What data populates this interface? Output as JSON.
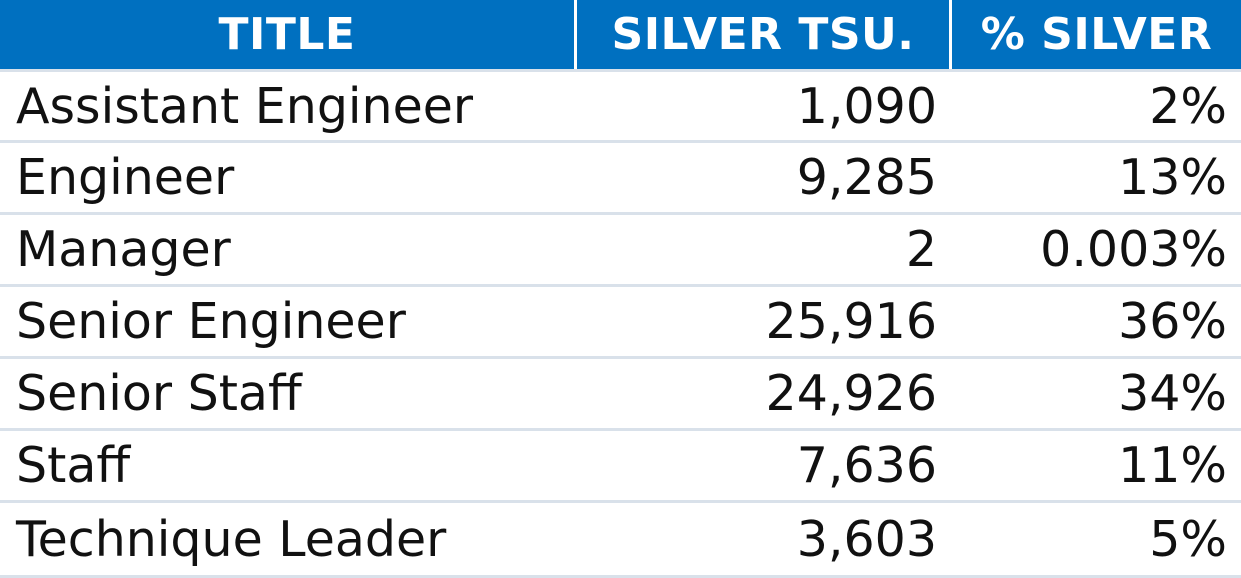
{
  "table": {
    "headers": {
      "title": "TITLE",
      "silver_tsu": "SILVER TSU.",
      "pct_silver": "% SILVER"
    },
    "rows": [
      {
        "title": "Assistant Engineer",
        "silver_tsu": "1,090",
        "pct_silver": "2%"
      },
      {
        "title": "Engineer",
        "silver_tsu": "9,285",
        "pct_silver": "13%"
      },
      {
        "title": "Manager",
        "silver_tsu": "2",
        "pct_silver": "0.003%"
      },
      {
        "title": "Senior Engineer",
        "silver_tsu": "25,916",
        "pct_silver": "36%"
      },
      {
        "title": "Senior Staff",
        "silver_tsu": "24,926",
        "pct_silver": "34%"
      },
      {
        "title": "Staff",
        "silver_tsu": "7,636",
        "pct_silver": "11%"
      },
      {
        "title": "Technique Leader",
        "silver_tsu": "3,603",
        "pct_silver": "5%"
      }
    ]
  },
  "colors": {
    "header_bg": "#0070c0",
    "header_text": "#ffffff",
    "row_divider": "#d9e1ea",
    "body_text": "#111111"
  }
}
